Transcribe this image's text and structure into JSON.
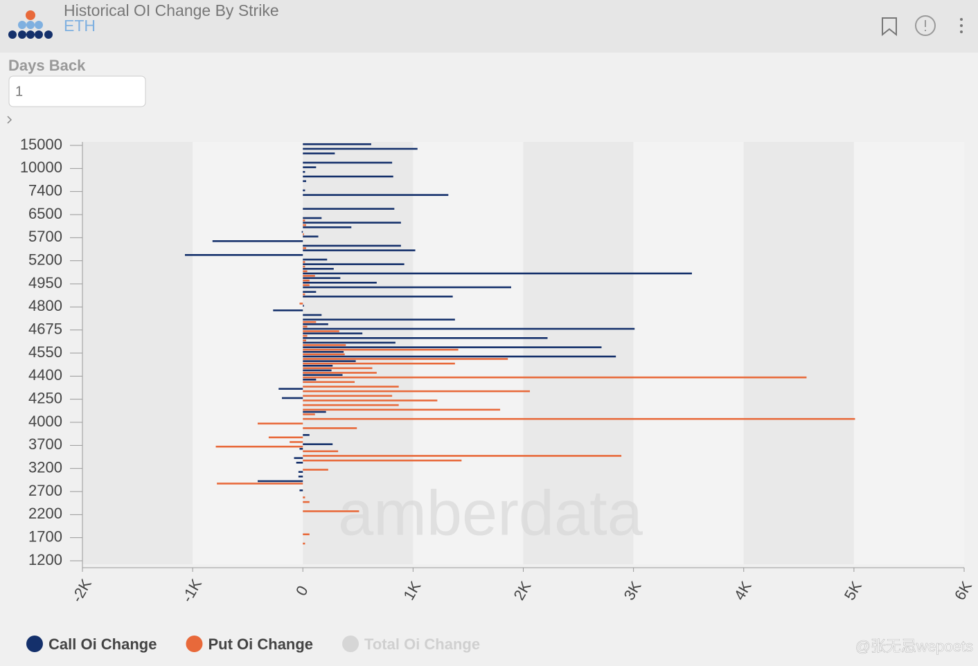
{
  "header": {
    "title": "Historical OI Change By Strike",
    "subtitle": "ETH"
  },
  "controls": {
    "label": "Days Back",
    "input_value": "1"
  },
  "watermark": "amberdata",
  "credit": "@张无忌wepoets",
  "chart_data": {
    "type": "hbar",
    "categories": [
      "15000",
      null,
      null,
      null,
      null,
      "10000",
      null,
      null,
      null,
      null,
      "7400",
      null,
      null,
      null,
      null,
      "6500",
      null,
      null,
      null,
      null,
      "5700",
      null,
      null,
      null,
      null,
      "5200",
      null,
      null,
      null,
      null,
      "4950",
      null,
      null,
      null,
      null,
      "4800",
      null,
      null,
      null,
      null,
      "4675",
      null,
      null,
      null,
      null,
      "4550",
      null,
      null,
      null,
      null,
      "4400",
      null,
      null,
      null,
      null,
      "4250",
      null,
      null,
      null,
      null,
      "4000",
      null,
      null,
      null,
      null,
      "3700",
      null,
      null,
      null,
      null,
      "3200",
      null,
      null,
      null,
      null,
      "2700",
      null,
      null,
      null,
      null,
      "2200",
      null,
      null,
      null,
      null,
      "1700",
      null,
      null,
      null,
      null,
      "1200"
    ],
    "series": [
      {
        "name": "Call Oi Change",
        "color": "#14306b",
        "values": [
          620,
          1040,
          290,
          0,
          810,
          120,
          20,
          820,
          30,
          0,
          20,
          1320,
          0,
          0,
          830,
          0,
          170,
          890,
          440,
          -10,
          140,
          -820,
          890,
          1020,
          -1070,
          220,
          920,
          280,
          3530,
          340,
          670,
          1890,
          120,
          1360,
          0,
          10,
          -270,
          170,
          1380,
          230,
          3010,
          540,
          2220,
          840,
          2710,
          370,
          2840,
          480,
          270,
          260,
          360,
          120,
          0,
          -220,
          0,
          -190,
          0,
          0,
          210,
          0,
          0,
          0,
          0,
          60,
          0,
          270,
          -30,
          0,
          -80,
          -60,
          0,
          -40,
          -40,
          -410,
          0,
          -30,
          0,
          0,
          0,
          0,
          0,
          0,
          0,
          0,
          0,
          0,
          0,
          0,
          0,
          0,
          0
        ]
      },
      {
        "name": "Put Oi Change",
        "color": "#e8693a",
        "values": [
          0,
          0,
          0,
          0,
          0,
          0,
          0,
          0,
          0,
          0,
          0,
          0,
          0,
          0,
          0,
          0,
          20,
          30,
          0,
          10,
          0,
          0,
          30,
          0,
          0,
          20,
          20,
          40,
          110,
          60,
          60,
          0,
          20,
          0,
          -30,
          0,
          0,
          0,
          120,
          40,
          330,
          40,
          30,
          390,
          1410,
          380,
          1860,
          1380,
          630,
          670,
          4570,
          470,
          870,
          2060,
          810,
          1220,
          870,
          1790,
          110,
          5010,
          -410,
          490,
          0,
          -310,
          -120,
          -790,
          320,
          2890,
          1440,
          0,
          230,
          0,
          0,
          -780,
          0,
          0,
          20,
          60,
          0,
          510,
          0,
          0,
          0,
          0,
          60,
          0,
          20,
          0,
          0,
          0,
          0
        ]
      },
      {
        "name": "Total Oi Change",
        "color": "#d6d6d6",
        "visible": false
      }
    ],
    "xlim": [
      -2000,
      6000
    ],
    "xticks": [
      {
        "value": -2000,
        "label": "-2K"
      },
      {
        "value": -1000,
        "label": "-1K"
      },
      0,
      {
        "value": 1000,
        "label": "1K"
      },
      {
        "value": 2000,
        "label": "2K"
      },
      {
        "value": 3000,
        "label": "3K"
      },
      {
        "value": 4000,
        "label": "4K"
      },
      {
        "value": 5000,
        "label": "5K"
      },
      {
        "value": 6000,
        "label": "6K"
      }
    ]
  }
}
